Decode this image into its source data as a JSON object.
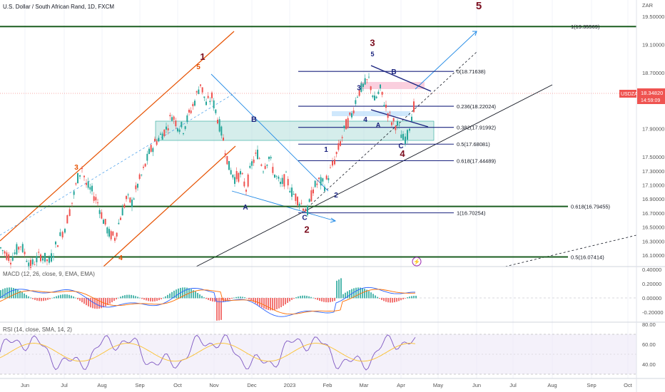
{
  "header": {
    "symbol_title": "U.S. Dollar / South African Rand, 1D, FXCM",
    "currency": "ZAR"
  },
  "chart_data": {
    "type": "candlestick",
    "x_ticks": [
      "Jun",
      "Jul",
      "Aug",
      "Sep",
      "Oct",
      "Nov",
      "Dec",
      "2023",
      "Feb",
      "Mar",
      "Apr",
      "May",
      "Jun",
      "Jul",
      "Aug",
      "Sep",
      "Oct"
    ],
    "price_axis": {
      "ticks": [
        19.5,
        19.1,
        18.7,
        18.3,
        17.9,
        17.5,
        17.3,
        17.1,
        16.9,
        16.7,
        16.5,
        16.3,
        16.1
      ],
      "ylim": [
        16.0,
        19.8
      ]
    },
    "current_price": {
      "symbol": "USDZAR",
      "price": "18.34820",
      "countdown": "14:59:09"
    },
    "horizontal_levels": [
      {
        "label": "1(19.35569)",
        "value": 19.35569,
        "color": "#1b5e20"
      },
      {
        "label": "0.618(16.79455)",
        "value": 16.79455,
        "color": "#1b5e20"
      },
      {
        "label": "0.5(16.07414)",
        "value": 16.07414,
        "color": "#1b5e20"
      }
    ],
    "fib_levels": [
      {
        "label": "0(18.71638)",
        "value": 18.71638
      },
      {
        "label": "0.236(18.22024)",
        "value": 18.22024
      },
      {
        "label": "0.382(17.91992)",
        "value": 17.91992
      },
      {
        "label": "0.5(17.68081)",
        "value": 17.68081
      },
      {
        "label": "0.618(17.44489)",
        "value": 17.44489
      },
      {
        "label": "1(16.70254)",
        "value": 16.70254
      }
    ],
    "price_path": [
      [
        0,
        16.2
      ],
      [
        14,
        16.05
      ],
      [
        28,
        16.25
      ],
      [
        42,
        15.95
      ],
      [
        56,
        16.1
      ],
      [
        68,
        16.0
      ],
      [
        80,
        16.3
      ],
      [
        90,
        16.5
      ],
      [
        100,
        16.85
      ],
      [
        108,
        17.2
      ],
      [
        114,
        17.35
      ],
      [
        120,
        17.1
      ],
      [
        128,
        17.0
      ],
      [
        136,
        16.85
      ],
      [
        144,
        16.6
      ],
      [
        152,
        16.4
      ],
      [
        160,
        16.35
      ],
      [
        168,
        16.65
      ],
      [
        176,
        16.9
      ],
      [
        184,
        16.85
      ],
      [
        192,
        17.1
      ],
      [
        200,
        17.3
      ],
      [
        208,
        17.55
      ],
      [
        216,
        17.7
      ],
      [
        224,
        17.8
      ],
      [
        232,
        17.9
      ],
      [
        240,
        18.1
      ],
      [
        248,
        17.95
      ],
      [
        256,
        17.9
      ],
      [
        264,
        18.1
      ],
      [
        272,
        18.3
      ],
      [
        280,
        18.55
      ],
      [
        288,
        18.25
      ],
      [
        296,
        18.35
      ],
      [
        304,
        18.05
      ],
      [
        312,
        17.75
      ],
      [
        320,
        17.35
      ],
      [
        328,
        17.2
      ],
      [
        336,
        17.25
      ],
      [
        344,
        17.05
      ],
      [
        352,
        17.4
      ],
      [
        360,
        17.55
      ],
      [
        368,
        17.35
      ],
      [
        376,
        17.5
      ],
      [
        384,
        17.25
      ],
      [
        392,
        17.1
      ],
      [
        400,
        17.2
      ],
      [
        408,
        17.0
      ],
      [
        416,
        16.9
      ],
      [
        424,
        16.8
      ],
      [
        430,
        16.72
      ],
      [
        438,
        17.05
      ],
      [
        446,
        17.15
      ],
      [
        454,
        17.1
      ],
      [
        462,
        17.3
      ],
      [
        468,
        17.45
      ],
      [
        476,
        17.7
      ],
      [
        484,
        17.95
      ],
      [
        492,
        18.1
      ],
      [
        500,
        18.4
      ],
      [
        508,
        18.5
      ],
      [
        516,
        18.6
      ],
      [
        524,
        18.3
      ],
      [
        532,
        18.45
      ],
      [
        540,
        18.2
      ],
      [
        548,
        18.0
      ],
      [
        556,
        17.95
      ],
      [
        564,
        17.75
      ],
      [
        570,
        17.8
      ],
      [
        576,
        18.1
      ],
      [
        582,
        18.34
      ]
    ],
    "wave_labels": [
      {
        "text": "5",
        "color": "#7b0d1e",
        "x": 671,
        "y": 19.6,
        "size": 15
      },
      {
        "text": "1",
        "color": "#7b0d1e",
        "x": 284,
        "y": 18.88,
        "size": 13
      },
      {
        "text": "5",
        "color": "#e65100",
        "x": 278,
        "y": 18.75,
        "size": 10
      },
      {
        "text": "3",
        "color": "#7b0d1e",
        "x": 522,
        "y": 19.08,
        "size": 13
      },
      {
        "text": "5",
        "color": "#1a237e",
        "x": 522,
        "y": 18.93,
        "size": 9
      },
      {
        "text": "3",
        "color": "#1a237e",
        "x": 503,
        "y": 18.45,
        "size": 10
      },
      {
        "text": "B",
        "color": "#1a237e",
        "x": 552,
        "y": 18.68,
        "size": 10
      },
      {
        "text": "4",
        "color": "#1a237e",
        "x": 512,
        "y": 18.0,
        "size": 10
      },
      {
        "text": "A",
        "color": "#1a237e",
        "x": 530,
        "y": 17.92,
        "size": 9
      },
      {
        "text": "C",
        "color": "#1a237e",
        "x": 562,
        "y": 17.62,
        "size": 10
      },
      {
        "text": "4",
        "color": "#7b0d1e",
        "x": 564,
        "y": 17.5,
        "size": 13
      },
      {
        "text": "B",
        "color": "#1a237e",
        "x": 356,
        "y": 18.0,
        "size": 11
      },
      {
        "text": "A",
        "color": "#1a237e",
        "x": 344,
        "y": 16.75,
        "size": 10
      },
      {
        "text": "C",
        "color": "#1a237e",
        "x": 427,
        "y": 16.6,
        "size": 10
      },
      {
        "text": "2",
        "color": "#7b0d1e",
        "x": 430,
        "y": 16.42,
        "size": 13
      },
      {
        "text": "1",
        "color": "#1a237e",
        "x": 457,
        "y": 17.57,
        "size": 10
      },
      {
        "text": "2",
        "color": "#1a237e",
        "x": 471,
        "y": 16.92,
        "size": 10
      },
      {
        "text": "3",
        "color": "#e65100",
        "x": 107,
        "y": 17.32,
        "size": 10
      },
      {
        "text": "4",
        "color": "#e65100",
        "x": 169,
        "y": 16.03,
        "size": 10
      }
    ],
    "macd": {
      "legend": "MACD (12, 26, close, 9, EMA, EMA)",
      "ticks": [
        0.4,
        0.2,
        0.0,
        -0.2
      ],
      "ylim": [
        -0.3,
        0.45
      ]
    },
    "rsi": {
      "legend": "RSI (14, close, SMA, 14, 2)",
      "ticks": [
        80.0,
        60.0,
        40.0
      ],
      "ylim": [
        30,
        85
      ],
      "band": [
        30,
        70
      ]
    }
  }
}
